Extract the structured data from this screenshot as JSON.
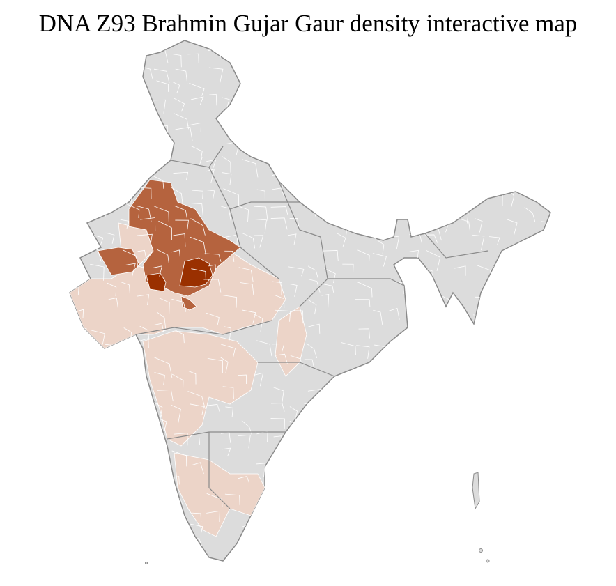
{
  "title": "DNA Z93 Brahmin Gujar Gaur density interactive map",
  "density_colors": {
    "none": "#dcdcdc",
    "low": "#ecd4c8",
    "medium": "#b5633e",
    "high": "#9a3000"
  },
  "border_colors": {
    "district": "#ffffff",
    "state": "#8a8a8a"
  }
}
